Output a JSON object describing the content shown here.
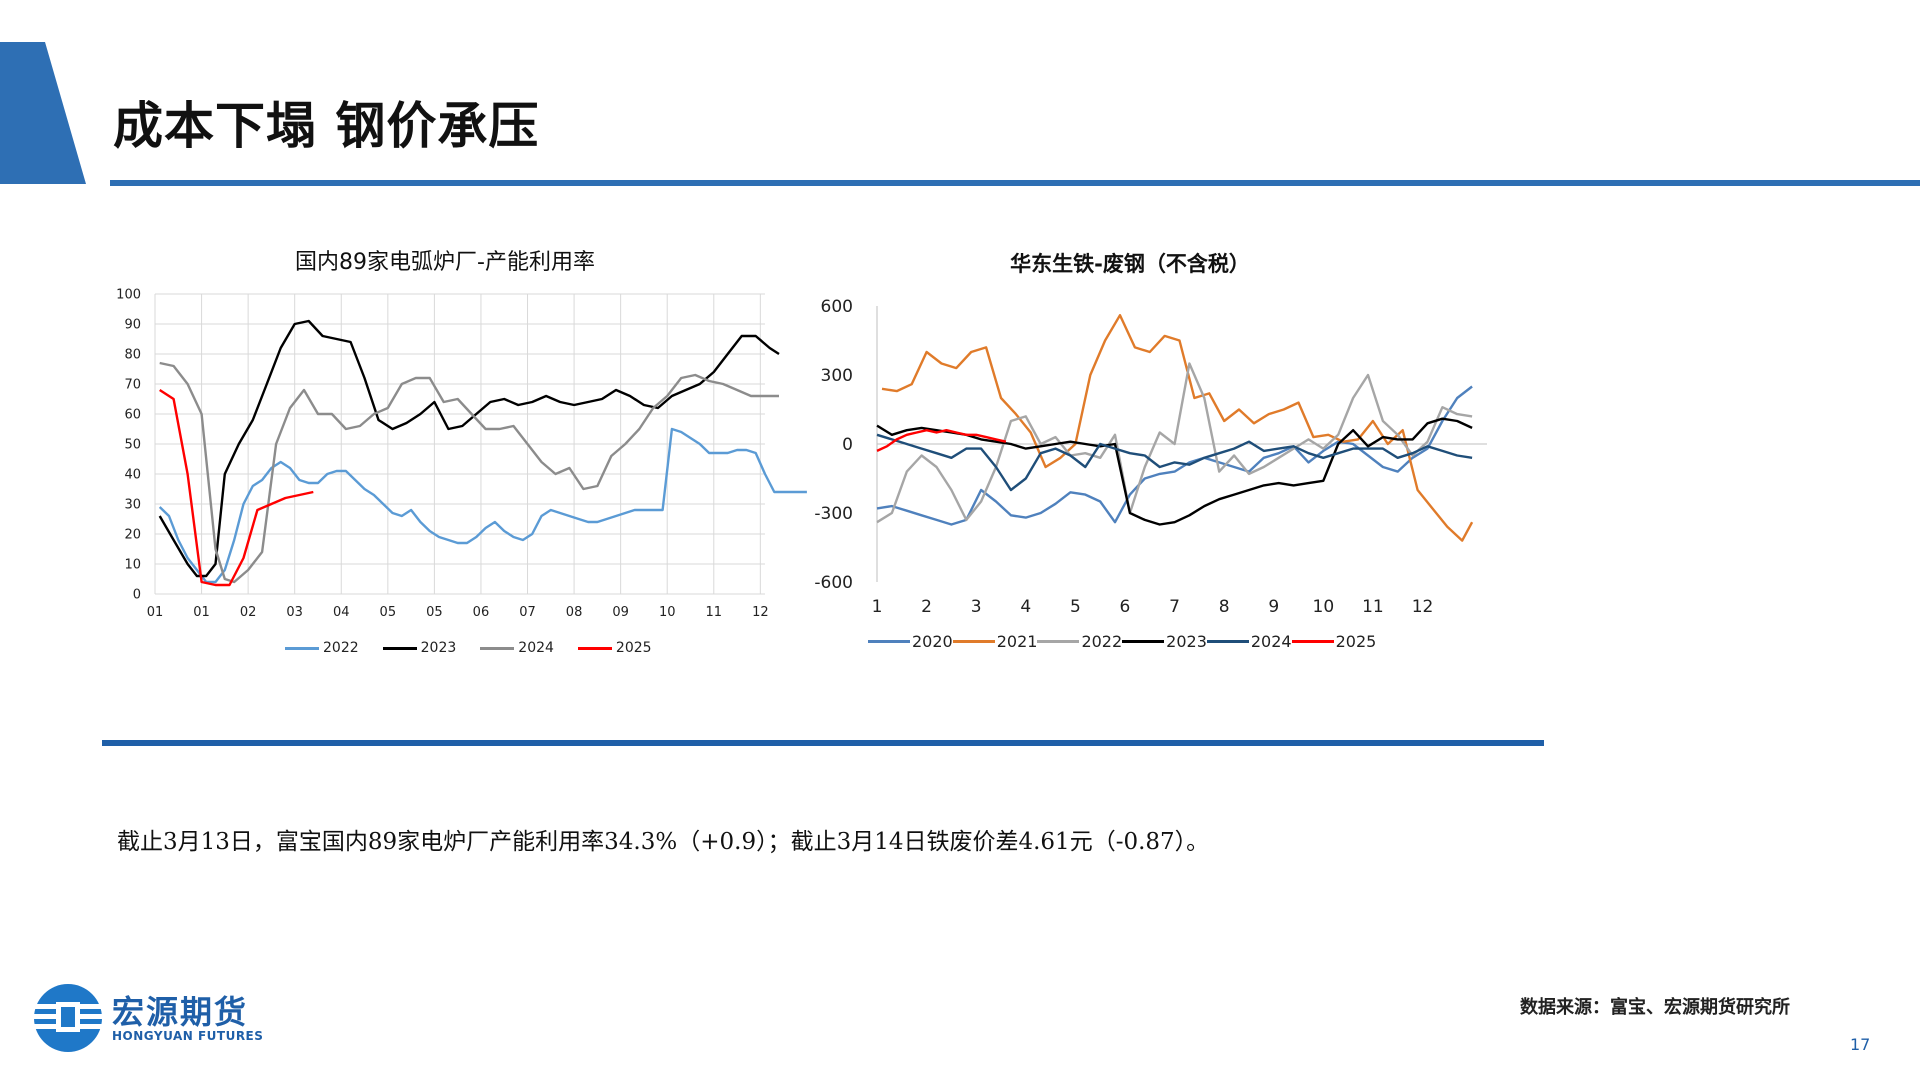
{
  "page": {
    "title": "成本下塌 钢价承压",
    "summary": "截止3月13日，富宝国内89家电炉厂产能利用率34.3%（+0.9）；截止3月14日铁废价差4.61元（-0.87）。",
    "source": "数据来源：富宝、宏源期货研究所",
    "page_number": "17",
    "logo_cn": "宏源期货",
    "logo_en": "HONGYUAN FUTURES",
    "colors": {
      "accent": "#2e6fb4",
      "rule": "#1f5fa8"
    }
  },
  "chart_data": [
    {
      "type": "line",
      "title": "国内89家电弧炉厂-产能利用率",
      "x": [
        "01",
        "01",
        "02",
        "03",
        "04",
        "05",
        "05",
        "06",
        "07",
        "08",
        "09",
        "10",
        "11",
        "12"
      ],
      "x_positions": [
        0,
        1,
        2,
        3,
        4,
        5,
        6,
        7,
        8,
        9,
        10,
        11,
        12,
        13
      ],
      "xlabel": "",
      "ylabel": "",
      "ylim": [
        0,
        100
      ],
      "yticks": [
        0,
        10,
        20,
        30,
        40,
        50,
        60,
        70,
        80,
        90,
        100
      ],
      "grid": true,
      "legend": "bottom",
      "series": [
        {
          "name": "2022",
          "color": "#5b9bd5",
          "x": [
            0.1,
            0.3,
            0.5,
            0.7,
            0.9,
            1.1,
            1.3,
            1.5,
            1.7,
            1.9,
            2.1,
            2.3,
            2.5,
            2.7,
            2.9,
            3.1,
            3.3,
            3.5,
            3.7,
            3.9,
            4.1,
            4.3,
            4.5,
            4.7,
            4.9,
            5.1,
            5.3,
            5.5,
            5.7,
            5.9,
            6.1,
            6.3,
            6.5,
            6.7,
            6.9,
            7.1,
            7.3,
            7.5,
            7.7,
            7.9,
            8.1,
            8.3,
            8.5,
            8.7,
            8.9,
            9.1,
            9.3,
            9.5,
            9.7,
            9.9,
            10.1,
            10.3,
            10.5,
            10.7,
            10.9,
            11.1,
            11.3,
            11.5,
            11.7,
            11.9,
            12.1,
            12.3,
            12.5,
            12.7,
            12.9,
            13.1,
            13.3,
            13.5,
            13.7,
            13.9,
            14.0
          ],
          "values": [
            29,
            26,
            18,
            12,
            8,
            4,
            4,
            8,
            18,
            30,
            36,
            38,
            42,
            44,
            42,
            38,
            37,
            37,
            40,
            41,
            41,
            38,
            35,
            33,
            30,
            27,
            26,
            28,
            24,
            21,
            19,
            18,
            17,
            17,
            19,
            22,
            24,
            21,
            19,
            18,
            20,
            26,
            28,
            27,
            26,
            25,
            24,
            24,
            25,
            26,
            27,
            28,
            28,
            28,
            28,
            55,
            54,
            52,
            50,
            47,
            47,
            47,
            48,
            48,
            47,
            40,
            34,
            34,
            34,
            34,
            34
          ]
        },
        {
          "name": "2023",
          "color": "#000000",
          "x": [
            0.1,
            0.4,
            0.7,
            0.9,
            1.1,
            1.3,
            1.5,
            1.8,
            2.1,
            2.4,
            2.7,
            3.0,
            3.3,
            3.6,
            3.9,
            4.2,
            4.5,
            4.8,
            5.1,
            5.4,
            5.7,
            6.0,
            6.3,
            6.6,
            6.9,
            7.2,
            7.5,
            7.8,
            8.1,
            8.4,
            8.7,
            9.0,
            9.3,
            9.6,
            9.9,
            10.2,
            10.5,
            10.8,
            11.1,
            11.4,
            11.7,
            12.0,
            12.3,
            12.6,
            12.9,
            13.2,
            13.4
          ],
          "values": [
            26,
            18,
            10,
            6,
            6,
            10,
            40,
            50,
            58,
            70,
            82,
            90,
            91,
            86,
            85,
            84,
            72,
            58,
            55,
            57,
            60,
            64,
            55,
            56,
            60,
            64,
            65,
            63,
            64,
            66,
            64,
            63,
            64,
            65,
            68,
            66,
            63,
            62,
            66,
            68,
            70,
            74,
            80,
            86,
            86,
            82,
            80
          ]
        },
        {
          "name": "2024",
          "color": "#8c8c8c",
          "x": [
            0.1,
            0.4,
            0.7,
            1.0,
            1.3,
            1.5,
            1.7,
            2.0,
            2.3,
            2.6,
            2.9,
            3.2,
            3.5,
            3.8,
            4.1,
            4.4,
            4.7,
            5.0,
            5.3,
            5.6,
            5.9,
            6.2,
            6.5,
            6.8,
            7.1,
            7.4,
            7.7,
            8.0,
            8.3,
            8.6,
            8.9,
            9.2,
            9.5,
            9.8,
            10.1,
            10.4,
            10.7,
            11.0,
            11.3,
            11.6,
            11.9,
            12.2,
            12.5,
            12.8,
            13.1,
            13.4
          ],
          "values": [
            77,
            76,
            70,
            60,
            15,
            5,
            4,
            8,
            14,
            50,
            62,
            68,
            60,
            60,
            55,
            56,
            60,
            62,
            70,
            72,
            72,
            64,
            65,
            60,
            55,
            55,
            56,
            50,
            44,
            40,
            42,
            35,
            36,
            46,
            50,
            55,
            62,
            66,
            72,
            73,
            71,
            70,
            68,
            66,
            66,
            66
          ]
        },
        {
          "name": "2025",
          "color": "#ff0000",
          "x": [
            0.1,
            0.4,
            0.7,
            1.0,
            1.3,
            1.6,
            1.9,
            2.2,
            2.5,
            2.8,
            3.1,
            3.4
          ],
          "values": [
            68,
            65,
            40,
            4,
            3,
            3,
            12,
            28,
            30,
            32,
            33,
            34
          ]
        }
      ]
    },
    {
      "type": "line",
      "title": "华东生铁-废钢（不含税）",
      "x": [
        "1",
        "2",
        "3",
        "4",
        "5",
        "6",
        "7",
        "8",
        "9",
        "10",
        "11",
        "12"
      ],
      "x_positions": [
        1,
        2,
        3,
        4,
        5,
        6,
        7,
        8,
        9,
        10,
        11,
        12
      ],
      "xlabel": "",
      "ylabel": "",
      "ylim": [
        -600,
        600
      ],
      "yticks": [
        -600,
        -300,
        0,
        300,
        600
      ],
      "grid": false,
      "legend": "bottom",
      "series": [
        {
          "name": "2020",
          "color": "#4f81bd",
          "x": [
            1.0,
            1.3,
            1.6,
            1.9,
            2.2,
            2.5,
            2.8,
            3.1,
            3.4,
            3.7,
            4.0,
            4.3,
            4.6,
            4.9,
            5.2,
            5.5,
            5.8,
            6.1,
            6.4,
            6.7,
            7.0,
            7.3,
            7.6,
            7.9,
            8.2,
            8.5,
            8.8,
            9.1,
            9.4,
            9.7,
            10.0,
            10.3,
            10.6,
            10.9,
            11.2,
            11.5,
            11.8,
            12.1,
            12.4,
            12.7,
            13.0
          ],
          "values": [
            -280,
            -270,
            -290,
            -310,
            -330,
            -350,
            -330,
            -200,
            -250,
            -310,
            -320,
            -300,
            -260,
            -210,
            -220,
            -250,
            -340,
            -220,
            -150,
            -130,
            -120,
            -80,
            -60,
            -80,
            -100,
            -120,
            -60,
            -40,
            -10,
            -80,
            -30,
            10,
            0,
            -50,
            -100,
            -120,
            -60,
            -20,
            100,
            200,
            250
          ]
        },
        {
          "name": "2021",
          "color": "#e07b2a",
          "x": [
            1.1,
            1.4,
            1.7,
            2.0,
            2.3,
            2.6,
            2.9,
            3.2,
            3.5,
            3.8,
            4.1,
            4.4,
            4.7,
            5.0,
            5.3,
            5.6,
            5.9,
            6.2,
            6.5,
            6.8,
            7.1,
            7.4,
            7.7,
            8.0,
            8.3,
            8.6,
            8.9,
            9.2,
            9.5,
            9.8,
            10.1,
            10.4,
            10.7,
            11.0,
            11.3,
            11.6,
            11.9,
            12.2,
            12.5,
            12.8,
            13.0
          ],
          "values": [
            240,
            230,
            260,
            400,
            350,
            330,
            400,
            420,
            200,
            130,
            50,
            -100,
            -60,
            0,
            300,
            450,
            560,
            420,
            400,
            470,
            450,
            200,
            220,
            100,
            150,
            90,
            130,
            150,
            180,
            30,
            40,
            10,
            20,
            100,
            0,
            60,
            -200,
            -280,
            -360,
            -420,
            -340
          ]
        },
        {
          "name": "2022",
          "color": "#a6a6a6",
          "x": [
            1.0,
            1.3,
            1.6,
            1.9,
            2.2,
            2.5,
            2.8,
            3.1,
            3.4,
            3.7,
            4.0,
            4.3,
            4.6,
            4.9,
            5.2,
            5.5,
            5.8,
            6.1,
            6.4,
            6.7,
            7.0,
            7.3,
            7.6,
            7.9,
            8.2,
            8.5,
            8.8,
            9.1,
            9.4,
            9.7,
            10.0,
            10.3,
            10.6,
            10.9,
            11.2,
            11.5,
            11.8,
            12.1,
            12.4,
            12.7,
            13.0
          ],
          "values": [
            -340,
            -300,
            -120,
            -50,
            -100,
            -200,
            -330,
            -250,
            -100,
            100,
            120,
            0,
            30,
            -50,
            -40,
            -60,
            40,
            -300,
            -100,
            50,
            0,
            350,
            200,
            -120,
            -50,
            -130,
            -100,
            -60,
            -20,
            20,
            -20,
            40,
            200,
            300,
            100,
            40,
            -50,
            10,
            160,
            130,
            120
          ]
        },
        {
          "name": "2023",
          "color": "#000000",
          "x": [
            1.0,
            1.3,
            1.6,
            1.9,
            2.2,
            2.5,
            2.8,
            3.1,
            3.4,
            3.7,
            4.0,
            4.3,
            4.6,
            4.9,
            5.2,
            5.5,
            5.8,
            6.1,
            6.4,
            6.7,
            7.0,
            7.3,
            7.6,
            7.9,
            8.2,
            8.5,
            8.8,
            9.1,
            9.4,
            9.7,
            10.0,
            10.3,
            10.6,
            10.9,
            11.2,
            11.5,
            11.8,
            12.1,
            12.4,
            12.7,
            13.0
          ],
          "values": [
            80,
            40,
            60,
            70,
            60,
            50,
            40,
            20,
            10,
            0,
            -20,
            -10,
            0,
            10,
            0,
            -10,
            0,
            -300,
            -330,
            -350,
            -340,
            -310,
            -270,
            -240,
            -220,
            -200,
            -180,
            -170,
            -180,
            -170,
            -160,
            0,
            60,
            -10,
            30,
            20,
            20,
            90,
            110,
            100,
            70
          ]
        },
        {
          "name": "2024",
          "color": "#1f4e79",
          "x": [
            1.0,
            1.3,
            1.6,
            1.9,
            2.2,
            2.5,
            2.8,
            3.1,
            3.4,
            3.7,
            4.0,
            4.3,
            4.6,
            4.9,
            5.2,
            5.5,
            5.8,
            6.1,
            6.4,
            6.7,
            7.0,
            7.3,
            7.6,
            7.9,
            8.2,
            8.5,
            8.8,
            9.1,
            9.4,
            9.7,
            10.0,
            10.3,
            10.6,
            10.9,
            11.2,
            11.5,
            11.8,
            12.1,
            12.4,
            12.7,
            13.0
          ],
          "values": [
            40,
            20,
            0,
            -20,
            -40,
            -60,
            -20,
            -20,
            -100,
            -200,
            -150,
            -40,
            -20,
            -50,
            -100,
            0,
            -20,
            -40,
            -50,
            -100,
            -80,
            -90,
            -60,
            -40,
            -20,
            10,
            -30,
            -20,
            -10,
            -40,
            -60,
            -40,
            -20,
            -20,
            -20,
            -60,
            -40,
            -10,
            -30,
            -50,
            -60
          ]
        },
        {
          "name": "2025",
          "color": "#ff0000",
          "x": [
            1.0,
            1.2,
            1.4,
            1.6,
            1.8,
            2.0,
            2.2,
            2.4,
            2.6,
            2.8,
            3.0,
            3.2,
            3.4,
            3.6
          ],
          "values": [
            -30,
            -10,
            20,
            40,
            50,
            60,
            50,
            60,
            50,
            40,
            40,
            30,
            20,
            10
          ]
        }
      ]
    }
  ]
}
